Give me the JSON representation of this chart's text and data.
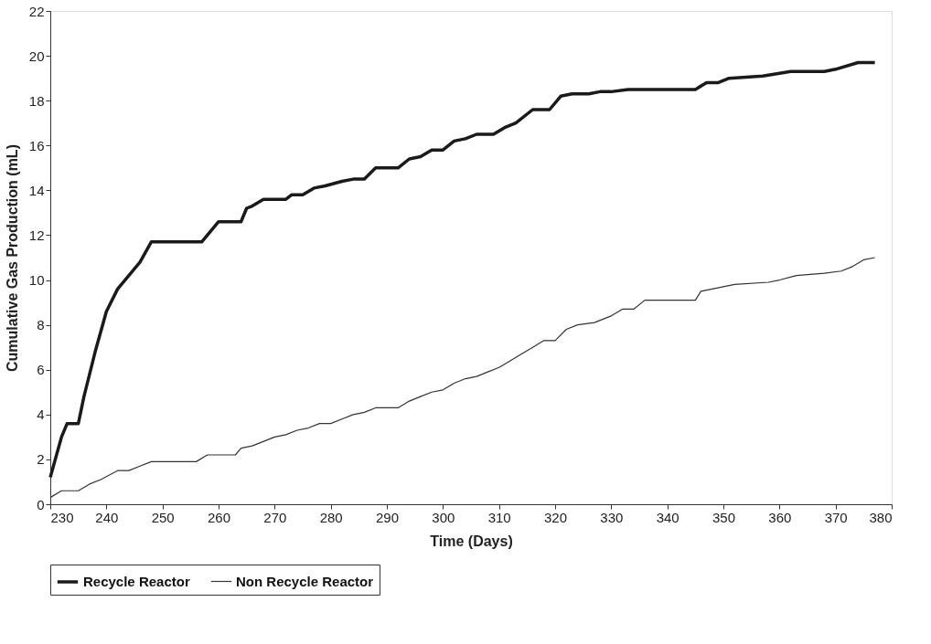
{
  "chart_data": {
    "type": "line",
    "xlabel": "Time (Days)",
    "ylabel": "Cumulative Gas Production (mL)",
    "xlim": [
      230,
      380
    ],
    "xticks": [
      230,
      240,
      250,
      260,
      270,
      280,
      290,
      300,
      310,
      320,
      330,
      340,
      350,
      360,
      370,
      380
    ],
    "ylim": [
      0,
      22
    ],
    "yticks": [
      0,
      2,
      4,
      6,
      8,
      10,
      12,
      14,
      16,
      18,
      20,
      22
    ],
    "grid": false,
    "legend": "bottom",
    "marker": "none",
    "line_style": "solid",
    "series": [
      {
        "name": "Recycle Reactor",
        "color": "#1a1a1a",
        "x": [
          230,
          232,
          233,
          235,
          236,
          238,
          240,
          242,
          244,
          246,
          248,
          257,
          258,
          260,
          264,
          265,
          266,
          268,
          272,
          273,
          275,
          277,
          279,
          282,
          284,
          286,
          288,
          292,
          294,
          296,
          298,
          300,
          302,
          304,
          306,
          309,
          311,
          313,
          316,
          319,
          321,
          323,
          326,
          328,
          330,
          333,
          345,
          347,
          349,
          351,
          357,
          362,
          368,
          370,
          374,
          377
        ],
        "values": [
          1.2,
          3.0,
          3.6,
          3.6,
          4.8,
          6.8,
          8.6,
          9.6,
          10.2,
          10.8,
          11.7,
          11.7,
          12.0,
          12.6,
          12.6,
          13.2,
          13.3,
          13.6,
          13.6,
          13.8,
          13.8,
          14.1,
          14.2,
          14.4,
          14.5,
          14.5,
          15.0,
          15.0,
          15.4,
          15.5,
          15.8,
          15.8,
          16.2,
          16.3,
          16.5,
          16.5,
          16.8,
          17.0,
          17.6,
          17.6,
          18.2,
          18.3,
          18.3,
          18.4,
          18.4,
          18.5,
          18.5,
          18.8,
          18.8,
          19.0,
          19.1,
          19.3,
          19.3,
          19.4,
          19.7,
          19.7
        ]
      },
      {
        "name": "Non Recycle Reactor",
        "color": "#333333",
        "x": [
          230,
          232,
          235,
          237,
          239,
          242,
          244,
          246,
          248,
          256,
          258,
          263,
          264,
          266,
          270,
          272,
          274,
          276,
          278,
          280,
          282,
          284,
          286,
          288,
          292,
          294,
          296,
          298,
          300,
          302,
          304,
          306,
          308,
          310,
          312,
          314,
          316,
          318,
          320,
          322,
          324,
          327,
          330,
          332,
          334,
          336,
          345,
          346,
          348,
          350,
          352,
          358,
          360,
          363,
          368,
          371,
          373,
          375,
          377
        ],
        "values": [
          0.3,
          0.6,
          0.6,
          0.9,
          1.1,
          1.5,
          1.5,
          1.7,
          1.9,
          1.9,
          2.2,
          2.2,
          2.5,
          2.6,
          3.0,
          3.1,
          3.3,
          3.4,
          3.6,
          3.6,
          3.8,
          4.0,
          4.1,
          4.3,
          4.3,
          4.6,
          4.8,
          5.0,
          5.1,
          5.4,
          5.6,
          5.7,
          5.9,
          6.1,
          6.4,
          6.7,
          7.0,
          7.3,
          7.3,
          7.8,
          8.0,
          8.1,
          8.4,
          8.7,
          8.7,
          9.1,
          9.1,
          9.5,
          9.6,
          9.7,
          9.8,
          9.9,
          10.0,
          10.2,
          10.3,
          10.4,
          10.6,
          10.9,
          11.0
        ]
      }
    ]
  }
}
